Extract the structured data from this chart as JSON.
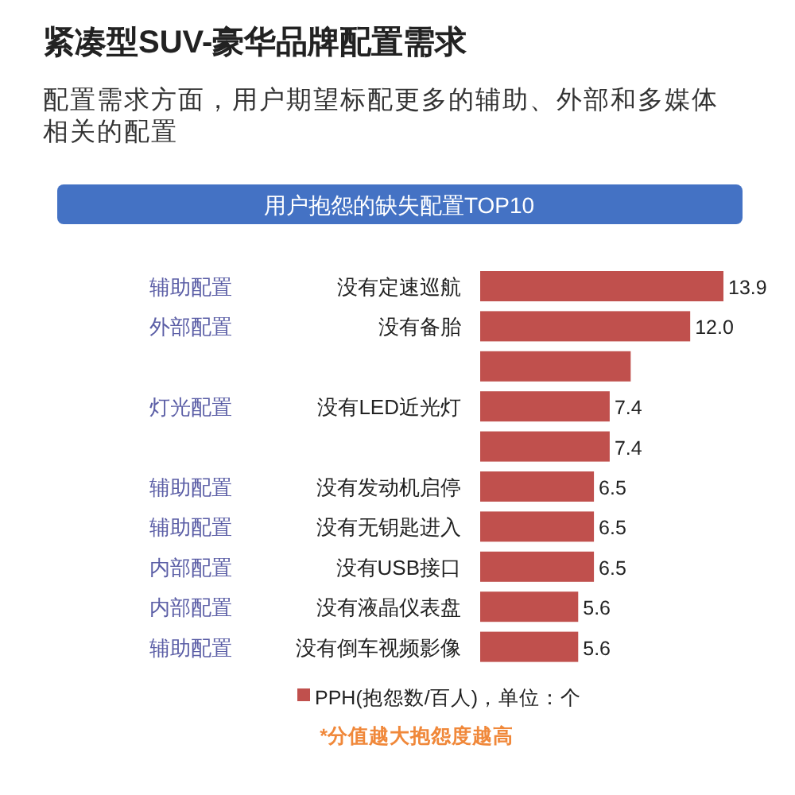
{
  "chart_data": {
    "type": "bar",
    "orientation": "horizontal",
    "title": "紧凑型SUV-豪华品牌配置需求",
    "subtitle": "配置需求方面，用户期望标配更多的辅助、外部和多媒体相关的配置",
    "categories": [
      "没有定速巡航",
      "没有备胎",
      null,
      "没有LED近光灯",
      null,
      "没有发动机启停",
      "没有无钥匙进入",
      "没有USB接口",
      "没有液晶仪表盘",
      "没有倒车视频影像"
    ],
    "series": [
      {
        "name": "PPH(抱怨数/百人)，单位：个",
        "color": "#c0504d",
        "values": [
          13.9,
          12.0,
          8.6,
          7.4,
          7.4,
          6.5,
          6.5,
          6.5,
          5.6,
          5.6
        ],
        "value_labels": [
          "13.9",
          "12.0",
          null,
          "7.4",
          "7.4",
          "6.5",
          "6.5",
          "6.5",
          "5.6",
          "5.6"
        ]
      }
    ],
    "legend": "bottom",
    "annotations": [
      "用户抱怨的缺失配置TOP10",
      "辅助配置",
      "外部配置",
      "灯光配置",
      "辅助配置",
      "辅助配置",
      "内部配置",
      "内部配置",
      "辅助配置",
      "*分值越大抱怨度越高"
    ]
  }
}
